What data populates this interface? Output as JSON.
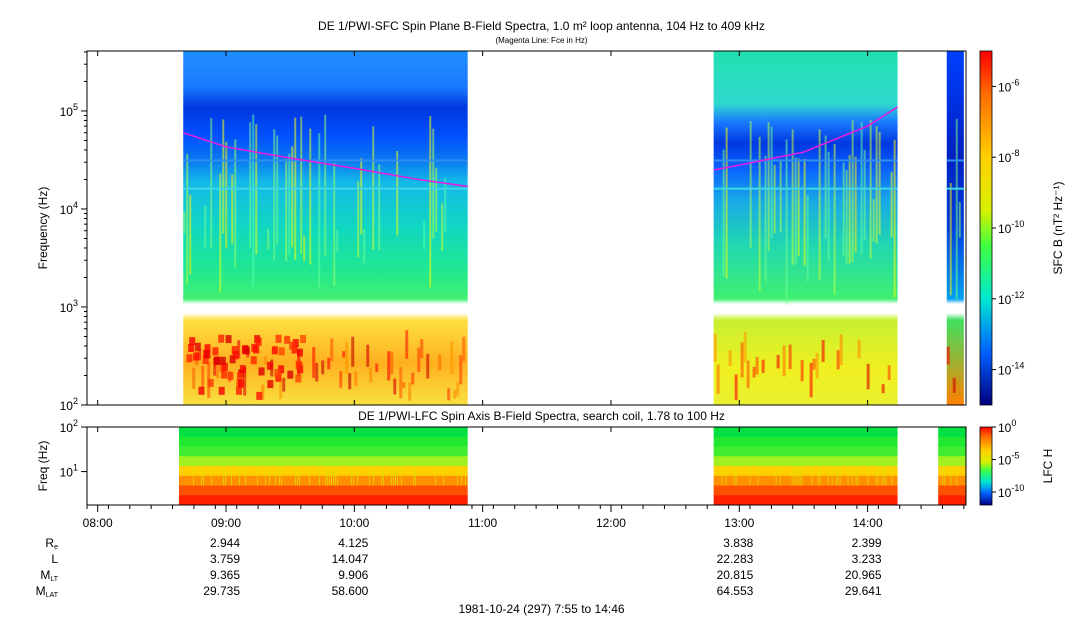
{
  "title_top": "DE 1/PWI-SFC  Spin Plane B-Field Spectra, 1.0 m² loop antenna, 104 Hz to 409 kHz",
  "subtitle_top": "(Magenta Line: Fce in Hz)",
  "title_bottom": "DE 1/PWI-LFC  Spin Axis B-Field Spectra, search coil, 1.78 to 100 Hz",
  "footer": "1981-10-24 (297) 7:55 to 14:46",
  "colors": {
    "fce_line": "#e020e0"
  },
  "chart_data": [
    {
      "type": "heatmap",
      "name": "sfc-spectrogram",
      "ylabel": "Frequency (Hz)",
      "yscale": "log",
      "ylim": [
        100,
        409000
      ],
      "xlim": [
        "07:55",
        "14:46"
      ],
      "yticks": [
        "10^2",
        "10^3",
        "10^4",
        "10^5"
      ],
      "colorbar": {
        "label": "SFC B (nT² Hz⁻¹)",
        "scale": "log",
        "range": [
          1e-15,
          1e-05
        ],
        "ticks": [
          "10^-6",
          "10^-8",
          "10^-10",
          "10^-12",
          "10^-14"
        ]
      },
      "data_intervals": [
        [
          "08:40",
          "10:53"
        ],
        [
          "12:48",
          "14:14"
        ],
        [
          "14:37",
          "14:45"
        ]
      ],
      "fce_line": {
        "name": "Fce",
        "x": [
          "08:40",
          "09:00",
          "09:30",
          "10:00",
          "10:30",
          "10:53",
          "12:48",
          "13:00",
          "13:30",
          "14:00",
          "14:14"
        ],
        "y": [
          60000,
          43000,
          33000,
          26000,
          20000,
          17000,
          25000,
          28000,
          38000,
          70000,
          110000
        ]
      }
    },
    {
      "type": "heatmap",
      "name": "lfc-spectrogram",
      "ylabel": "Freq (Hz)",
      "yscale": "log",
      "ylim": [
        1.78,
        100
      ],
      "yticks": [
        "10^1",
        "10^2"
      ],
      "colorbar": {
        "label": "LFC H",
        "scale": "log",
        "range": [
          1e-12,
          1
        ],
        "ticks": [
          "10^0",
          "10^-5",
          "10^-10"
        ]
      },
      "data_intervals": [
        [
          "08:38",
          "10:53"
        ],
        [
          "12:48",
          "14:14"
        ],
        [
          "14:33",
          "14:46"
        ]
      ]
    }
  ],
  "xaxis": {
    "ticks": [
      "08:00",
      "09:00",
      "10:00",
      "11:00",
      "12:00",
      "13:00",
      "14:00"
    ]
  },
  "ephemeris": {
    "labels": [
      "R",
      "L",
      "M",
      "M"
    ],
    "subs": [
      "e",
      "",
      "LT",
      "LAT"
    ],
    "columns": [
      {
        "time": "09:00",
        "values": [
          "2.944",
          "3.759",
          "9.365",
          "29.735"
        ]
      },
      {
        "time": "10:00",
        "values": [
          "4.125",
          "14.047",
          "9.906",
          "58.600"
        ]
      },
      {
        "time": "13:00",
        "values": [
          "3.838",
          "22.283",
          "20.815",
          "64.553"
        ]
      },
      {
        "time": "14:00",
        "values": [
          "2.399",
          "3.233",
          "20.965",
          "29.641"
        ]
      }
    ]
  }
}
